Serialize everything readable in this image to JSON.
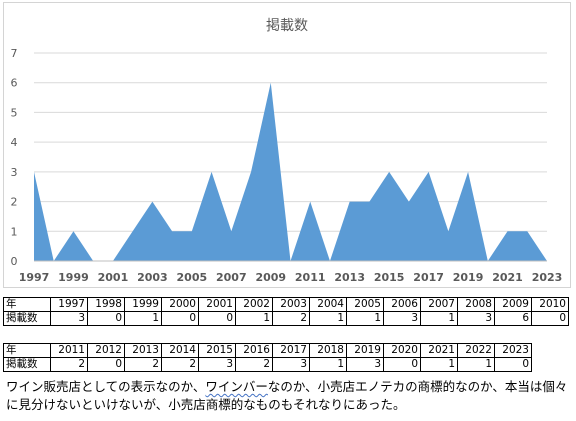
{
  "chart_data": {
    "type": "area",
    "title": "掲載数",
    "xlabel": "",
    "ylabel": "",
    "x": [
      1997,
      1998,
      1999,
      2000,
      2001,
      2002,
      2003,
      2004,
      2005,
      2006,
      2007,
      2008,
      2009,
      2010,
      2011,
      2012,
      2013,
      2014,
      2015,
      2016,
      2017,
      2018,
      2019,
      2020,
      2021,
      2022,
      2023
    ],
    "values": [
      3,
      0,
      1,
      0,
      0,
      1,
      2,
      1,
      1,
      3,
      1,
      3,
      6,
      0,
      2,
      0,
      2,
      2,
      3,
      2,
      3,
      1,
      3,
      0,
      1,
      1,
      0
    ],
    "x_tick_labels": [
      "1997",
      "1999",
      "2001",
      "2003",
      "2005",
      "2007",
      "2009",
      "2011",
      "2013",
      "2015",
      "2017",
      "2019",
      "2021",
      "2023"
    ],
    "y_tick_labels": [
      "0",
      "1",
      "2",
      "3",
      "4",
      "5",
      "6",
      "7"
    ],
    "ylim": [
      0,
      7
    ],
    "xlim": [
      1997,
      2023
    ],
    "grid": true,
    "legend": "none",
    "fill_color": "#5b9bd5",
    "grid_color": "#d9d9d9"
  },
  "table1": {
    "year_header": "年",
    "count_header": "掲載数",
    "years": [
      "1997",
      "1998",
      "1999",
      "2000",
      "2001",
      "2002",
      "2003",
      "2004",
      "2005",
      "2006",
      "2007",
      "2008",
      "2009",
      "2010"
    ],
    "counts": [
      "3",
      "0",
      "1",
      "0",
      "0",
      "1",
      "2",
      "1",
      "1",
      "3",
      "1",
      "3",
      "6",
      "0"
    ]
  },
  "table2": {
    "year_header": "年",
    "count_header": "掲載数",
    "years": [
      "2011",
      "2012",
      "2013",
      "2014",
      "2015",
      "2016",
      "2017",
      "2018",
      "2019",
      "2020",
      "2021",
      "2022",
      "2023"
    ],
    "counts": [
      "2",
      "0",
      "2",
      "2",
      "3",
      "2",
      "3",
      "1",
      "3",
      "0",
      "1",
      "1",
      "0"
    ]
  },
  "caption": {
    "part1": "ワイン販売店としての表示なのか、",
    "squiggle": "ワインバー",
    "part2": "なのか、小売店エノテカの商標的なのか、本当は個々に見分けないといけないが、小売店商標的なものもそれなりにあった。"
  }
}
